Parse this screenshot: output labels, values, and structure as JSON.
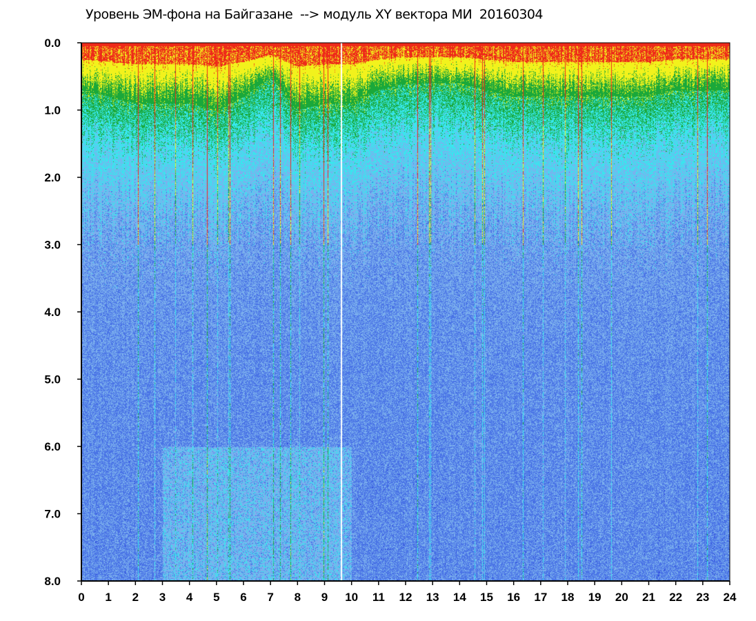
{
  "chart_data": {
    "type": "heatmap",
    "title": "Уровень ЭМ-фона на Байгазане  --> модуль XY вектора МИ  20160304",
    "xlabel": "",
    "ylabel": "",
    "x_range": [
      0,
      24
    ],
    "y_range": [
      0.0,
      8.0
    ],
    "y_inverted": true,
    "grid": false,
    "x_ticks": [
      "0",
      "1",
      "2",
      "3",
      "4",
      "5",
      "6",
      "7",
      "8",
      "9",
      "10",
      "11",
      "12",
      "13",
      "14",
      "15",
      "16",
      "17",
      "18",
      "19",
      "20",
      "21",
      "22",
      "23",
      "24"
    ],
    "y_ticks": [
      "0.0",
      "1.0",
      "2.0",
      "3.0",
      "4.0",
      "5.0",
      "6.0",
      "7.0",
      "8.0"
    ],
    "colorscale": [
      "#1f2fd6",
      "#4a74e6",
      "#7cb0ee",
      "#36e8ee",
      "#1aa83a",
      "#f2f21c",
      "#ee2a1a"
    ],
    "profile_note_levels": {
      "hours": [
        0,
        1,
        2,
        3,
        4,
        5,
        6,
        7,
        8,
        9,
        10,
        11,
        12,
        13,
        14,
        15,
        16,
        17,
        18,
        19,
        20,
        21,
        22,
        23,
        24
      ],
      "yellow_band_depth": [
        0.7,
        0.8,
        0.9,
        0.9,
        0.9,
        1.0,
        0.8,
        0.5,
        1.0,
        0.9,
        0.9,
        0.7,
        0.6,
        0.6,
        0.6,
        0.7,
        0.8,
        0.8,
        0.8,
        0.8,
        0.8,
        0.8,
        0.7,
        0.7,
        0.7
      ]
    }
  }
}
